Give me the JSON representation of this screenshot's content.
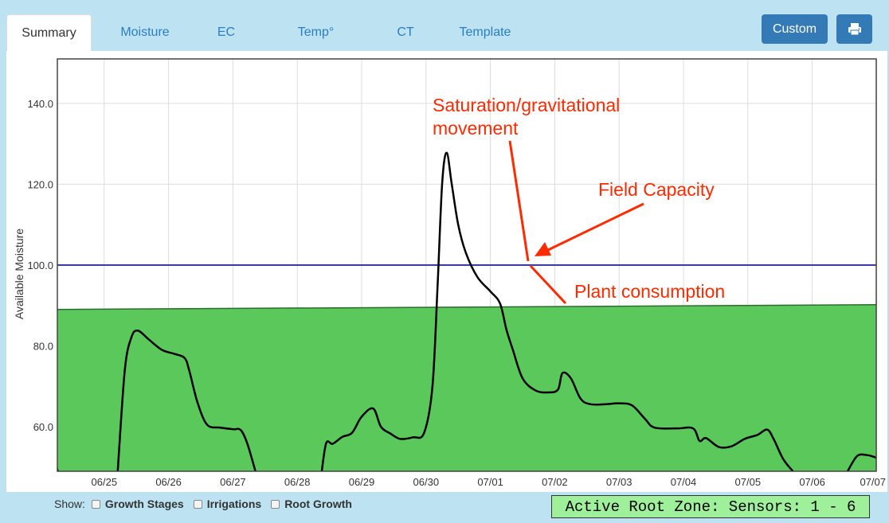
{
  "tabs": [
    {
      "label": "Summary",
      "active": true
    },
    {
      "label": "Moisture",
      "active": false
    },
    {
      "label": "EC",
      "active": false
    },
    {
      "label": "Temp°",
      "active": false
    },
    {
      "label": "CT",
      "active": false
    },
    {
      "label": "Template",
      "active": false
    }
  ],
  "toolbar": {
    "custom_label": "Custom",
    "print_icon": "print-icon"
  },
  "footer": {
    "show_label": "Show:",
    "checkboxes": [
      {
        "label": "Growth Stages",
        "checked": false
      },
      {
        "label": "Irrigations",
        "checked": false
      },
      {
        "label": "Root Growth",
        "checked": false
      }
    ],
    "zone_label": "Active Root Zone: Sensors: 1 - 6"
  },
  "colors": {
    "fill": "#5bc85b",
    "field_capacity_line": "#3a3aaa",
    "moisture_line": "#000000",
    "annotation": "#ff2a00",
    "accent": "#337ab7"
  },
  "chart_data": {
    "type": "line",
    "ylabel": "Available Moisture",
    "ylim": [
      49,
      151
    ],
    "y_ticks": [
      "60.0",
      "80.0",
      "100.0",
      "120.0",
      "140.0"
    ],
    "x_ticks": [
      "06/25",
      "06/26",
      "06/27",
      "06/28",
      "06/29",
      "06/30",
      "07/01",
      "07/02",
      "07/03",
      "07/04",
      "07/05",
      "07/06",
      "07/07"
    ],
    "field_capacity": 100,
    "fill_series": {
      "x": [
        0,
        13
      ],
      "values": [
        89,
        90.2
      ]
    },
    "series": [
      {
        "segments": [
          [
            [
              0.0,
              56
            ],
            [
              0.12,
              55.2
            ],
            [
              0.2,
              53
            ],
            [
              0.28,
              49
            ]
          ],
          [
            [
              1.21,
              49
            ],
            [
              1.32,
              74
            ],
            [
              1.42,
              82
            ],
            [
              1.52,
              83.8
            ],
            [
              1.7,
              81.5
            ],
            [
              1.9,
              79
            ],
            [
              2.1,
              78
            ],
            [
              2.25,
              77
            ],
            [
              2.32,
              74
            ],
            [
              2.45,
              66
            ],
            [
              2.6,
              60.5
            ],
            [
              2.8,
              59.8
            ],
            [
              3.0,
              59.4
            ],
            [
              3.12,
              59.2
            ],
            [
              3.22,
              56
            ],
            [
              3.35,
              49
            ]
          ],
          [
            [
              4.38,
              49
            ],
            [
              4.45,
              56
            ],
            [
              4.55,
              55.8
            ],
            [
              4.7,
              57.5
            ],
            [
              4.85,
              58.5
            ],
            [
              5.0,
              62.5
            ],
            [
              5.18,
              64.5
            ],
            [
              5.3,
              60
            ],
            [
              5.45,
              58.3
            ],
            [
              5.6,
              57
            ],
            [
              5.8,
              57.4
            ],
            [
              5.97,
              58.5
            ],
            [
              6.1,
              70
            ],
            [
              6.18,
              95
            ],
            [
              6.25,
              120
            ],
            [
              6.32,
              127.8
            ],
            [
              6.4,
              120
            ],
            [
              6.5,
              110
            ],
            [
              6.62,
              103
            ],
            [
              6.8,
              97
            ],
            [
              7.0,
              93.5
            ],
            [
              7.15,
              90.5
            ],
            [
              7.25,
              84
            ],
            [
              7.35,
              79
            ],
            [
              7.5,
              72
            ],
            [
              7.7,
              69
            ],
            [
              7.9,
              68.5
            ],
            [
              8.05,
              69.2
            ],
            [
              8.12,
              73.3
            ],
            [
              8.25,
              72
            ],
            [
              8.4,
              67
            ],
            [
              8.55,
              65.6
            ],
            [
              8.8,
              65.6
            ],
            [
              9.0,
              65.8
            ],
            [
              9.2,
              65.3
            ],
            [
              9.4,
              62
            ],
            [
              9.55,
              59.8
            ],
            [
              9.9,
              59.6
            ],
            [
              10.15,
              59.6
            ],
            [
              10.25,
              56.5
            ],
            [
              10.35,
              57.2
            ],
            [
              10.55,
              55
            ],
            [
              10.75,
              55.2
            ],
            [
              10.95,
              57
            ],
            [
              11.15,
              58
            ],
            [
              11.3,
              59.3
            ],
            [
              11.4,
              57
            ],
            [
              11.55,
              52
            ],
            [
              11.7,
              49
            ]
          ],
          [
            [
              12.55,
              49
            ],
            [
              12.7,
              52.8
            ],
            [
              12.85,
              53
            ],
            [
              12.95,
              52.6
            ],
            [
              13.0,
              52.3
            ]
          ]
        ]
      }
    ],
    "annotations": [
      {
        "text": "Saturation/gravitational",
        "text2": "movement"
      },
      {
        "text": "Field Capacity"
      },
      {
        "text": "Plant consumption"
      }
    ]
  }
}
